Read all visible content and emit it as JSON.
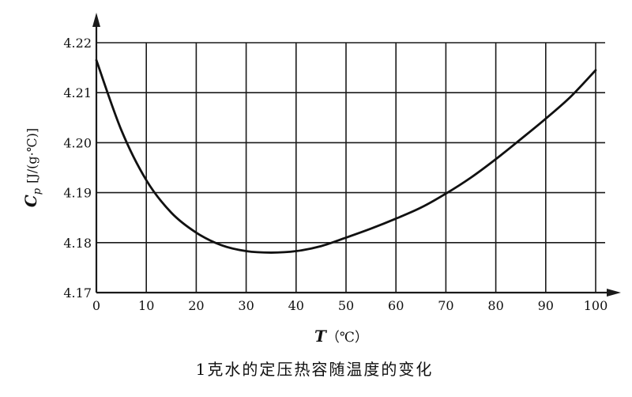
{
  "chart_data": {
    "type": "line",
    "title": "1克水的定压热容随温度的变化",
    "xlabel_var": "T",
    "xlabel_unit": "（℃）",
    "ylabel_var": "C",
    "ylabel_sub": "p",
    "ylabel_unit": "[J/(g·℃)]",
    "xlim": [
      0,
      100
    ],
    "ylim": [
      4.17,
      4.22
    ],
    "xticks": [
      0,
      10,
      20,
      30,
      40,
      50,
      60,
      70,
      80,
      90,
      100
    ],
    "yticks": [
      4.17,
      4.18,
      4.19,
      4.2,
      4.21,
      4.22
    ],
    "ytick_labels": [
      "4.17",
      "4.18",
      "4.19",
      "4.20",
      "4.21",
      "4.22"
    ],
    "grid": true,
    "series": [
      {
        "x": [
          0,
          5,
          10,
          15,
          20,
          25,
          30,
          35,
          40,
          45,
          50,
          55,
          60,
          65,
          70,
          75,
          80,
          85,
          90,
          95,
          100
        ],
        "y": [
          4.2165,
          4.2025,
          4.1925,
          4.186,
          4.182,
          4.1795,
          4.1783,
          4.178,
          4.1783,
          4.1793,
          4.181,
          4.1828,
          4.1848,
          4.187,
          4.1898,
          4.193,
          4.1967,
          4.2007,
          4.2048,
          4.2092,
          4.2145
        ]
      }
    ]
  }
}
